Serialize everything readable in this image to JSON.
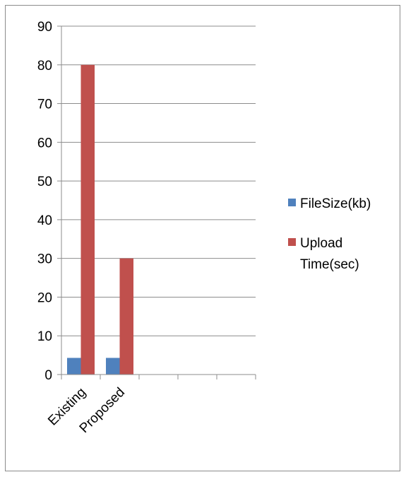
{
  "chart_data": {
    "type": "bar",
    "categories": [
      "Existing",
      "Proposed",
      "",
      "",
      ""
    ],
    "series": [
      {
        "name": "FileSize(kb)",
        "values": [
          4.3,
          4.3,
          null,
          null,
          null
        ],
        "color": "#4f81bd"
      },
      {
        "name": "Upload Time(sec)",
        "values": [
          80,
          30,
          null,
          null,
          null
        ],
        "color": "#c0504d"
      }
    ],
    "ylim": [
      0,
      90
    ],
    "yticks": [
      0,
      10,
      20,
      30,
      40,
      50,
      60,
      70,
      80,
      90
    ],
    "grid": true,
    "legend": "right",
    "title": "",
    "xlabel": "",
    "ylabel": ""
  },
  "legend": {
    "items": [
      {
        "lines": [
          "FileSize(kb)"
        ],
        "color": "#4f81bd"
      },
      {
        "lines": [
          "Upload",
          "Time(sec)"
        ],
        "color": "#c0504d"
      }
    ]
  }
}
